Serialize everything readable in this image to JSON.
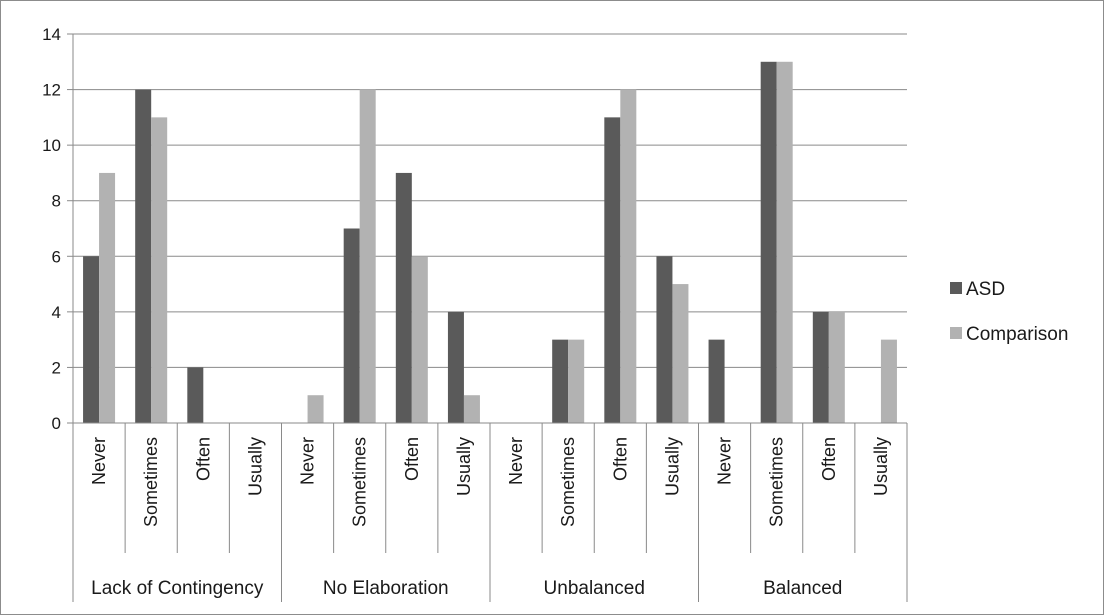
{
  "chart_data": {
    "type": "bar",
    "groups": [
      {
        "label": "Lack of Contingency",
        "categories": [
          "Never",
          "Sometimes",
          "Often",
          "Usually"
        ]
      },
      {
        "label": "No Elaboration",
        "categories": [
          "Never",
          "Sometimes",
          "Often",
          "Usually"
        ]
      },
      {
        "label": "Unbalanced",
        "categories": [
          "Never",
          "Sometimes",
          "Often",
          "Usually"
        ]
      },
      {
        "label": "Balanced",
        "categories": [
          "Never",
          "Sometimes",
          "Often",
          "Usually"
        ]
      }
    ],
    "series": [
      {
        "name": "ASD",
        "color": "#5a5a5a",
        "values": [
          6,
          12,
          2,
          0,
          0,
          7,
          9,
          4,
          0,
          3,
          11,
          6,
          3,
          13,
          4,
          0
        ]
      },
      {
        "name": "Comparison",
        "color": "#b2b2b2",
        "values": [
          9,
          11,
          0,
          0,
          1,
          12,
          6,
          1,
          0,
          3,
          12,
          5,
          0,
          13,
          4,
          3
        ]
      }
    ],
    "ylim": [
      0,
      14
    ],
    "yticks": [
      0,
      2,
      4,
      6,
      8,
      10,
      12,
      14
    ],
    "grid": true,
    "legend_position": "right"
  }
}
